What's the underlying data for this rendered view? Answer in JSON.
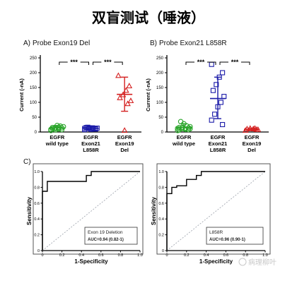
{
  "header": {
    "title": "双盲测试（唾液）"
  },
  "watermark": {
    "text": "病理柳叶"
  },
  "colors": {
    "green": "#2aa52a",
    "blue": "#1a1aa8",
    "red": "#d42020",
    "roc": "#000000",
    "diagonal": "#9aa0aa"
  },
  "chart_data": [
    {
      "id": "A",
      "panel_label": "A)",
      "title": "Probe Exon19 Del",
      "type": "scatter",
      "ylabel": "Current (-nA)",
      "ylim": [
        0,
        250
      ],
      "yticks": [
        0,
        50,
        100,
        150,
        200,
        250
      ],
      "categories": [
        {
          "lines": [
            "EGFR",
            "wild type"
          ],
          "color": "#2aa52a",
          "marker": "circle",
          "values": [
            5,
            8,
            10,
            12,
            15,
            18,
            20,
            22,
            12,
            9,
            14,
            16,
            7,
            11
          ],
          "mean": 14,
          "sd_low": 6,
          "sd_high": 22
        },
        {
          "lines": [
            "EGFR",
            "Exon21",
            "L858R"
          ],
          "color": "#1a1aa8",
          "marker": "square",
          "values": [
            8,
            10,
            12,
            14,
            15,
            13,
            11,
            9,
            16,
            12,
            10,
            14,
            12
          ],
          "mean": 12,
          "sd_low": 7,
          "sd_high": 17
        },
        {
          "lines": [
            "EGFR",
            "Exon19",
            "Del"
          ],
          "color": "#d42020",
          "marker": "triangle",
          "values": [
            190,
            155,
            140,
            125,
            115,
            105,
            95,
            5
          ],
          "mean": 127,
          "sd_low": 70,
          "sd_high": 185
        }
      ],
      "brackets": [
        {
          "from": 0,
          "to": 1,
          "label": "***"
        },
        {
          "from": 1,
          "to": 2,
          "label": "***"
        }
      ]
    },
    {
      "id": "B",
      "panel_label": "B)",
      "title": "Probe Exon21 L858R",
      "type": "scatter",
      "ylabel": "Current (-nA)",
      "ylim": [
        0,
        250
      ],
      "yticks": [
        0,
        50,
        100,
        150,
        200,
        250
      ],
      "categories": [
        {
          "lines": [
            "EGFR",
            "wild type"
          ],
          "color": "#2aa52a",
          "marker": "circle",
          "values": [
            5,
            8,
            10,
            12,
            15,
            18,
            20,
            28,
            35,
            12,
            14,
            9,
            16,
            7,
            11
          ],
          "mean": 15,
          "sd_low": 5,
          "sd_high": 28
        },
        {
          "lines": [
            "EGFR",
            "Exon21",
            "L858R"
          ],
          "color": "#1a1aa8",
          "marker": "square",
          "values": [
            228,
            200,
            185,
            160,
            140,
            120,
            100,
            85,
            60,
            40,
            25
          ],
          "mean": 113,
          "sd_low": 45,
          "sd_high": 185
        },
        {
          "lines": [
            "EGFR",
            "Exon19",
            "Del"
          ],
          "color": "#d42020",
          "marker": "triangle",
          "values": [
            5,
            8,
            10,
            12,
            10,
            8,
            12
          ],
          "mean": 9,
          "sd_low": 6,
          "sd_high": 13
        }
      ],
      "brackets": [
        {
          "from": 0,
          "to": 1,
          "label": "***"
        },
        {
          "from": 1,
          "to": 2,
          "label": "***"
        }
      ]
    },
    {
      "id": "C1",
      "panel_label": "C)",
      "type": "line",
      "xlabel": "1-Specificity",
      "ylabel": "Sensitivity",
      "xlim": [
        0,
        1
      ],
      "ylim": [
        0,
        1
      ],
      "ticks": [
        0,
        0.2,
        0.4,
        0.6,
        0.8,
        1.0
      ],
      "tick_labels": [
        "0",
        "0.2",
        "0.4",
        "0.6",
        "0.8",
        "1.0"
      ],
      "x": [
        0,
        0,
        0.05,
        0.05,
        0.45,
        0.45,
        0.5,
        0.5,
        1.0
      ],
      "y": [
        0,
        0.75,
        0.75,
        0.875,
        0.875,
        0.95,
        0.95,
        1.0,
        1.0
      ],
      "legend": {
        "name": "Exon 19 Deletion",
        "auc": "AUC=0.94 (0.82-1)"
      }
    },
    {
      "id": "C2",
      "type": "line",
      "xlabel": "1-Specificity",
      "ylabel": "Sensitivity",
      "xlim": [
        0,
        1
      ],
      "ylim": [
        0,
        1
      ],
      "ticks": [
        0,
        0.2,
        0.4,
        0.6,
        0.8,
        1.0
      ],
      "tick_labels": [
        "0",
        "0.2",
        "0.4",
        "0.6",
        "0.8",
        "1.0"
      ],
      "x": [
        0,
        0,
        0.05,
        0.05,
        0.1,
        0.1,
        0.2,
        0.2,
        0.3,
        0.3,
        0.35,
        0.35,
        1.0
      ],
      "y": [
        0,
        0.72,
        0.72,
        0.8,
        0.8,
        0.82,
        0.82,
        0.9,
        0.9,
        0.95,
        0.95,
        1.0,
        1.0
      ],
      "legend": {
        "name": "L858R",
        "auc": "AUC=0.96 (0.90-1)"
      }
    }
  ]
}
